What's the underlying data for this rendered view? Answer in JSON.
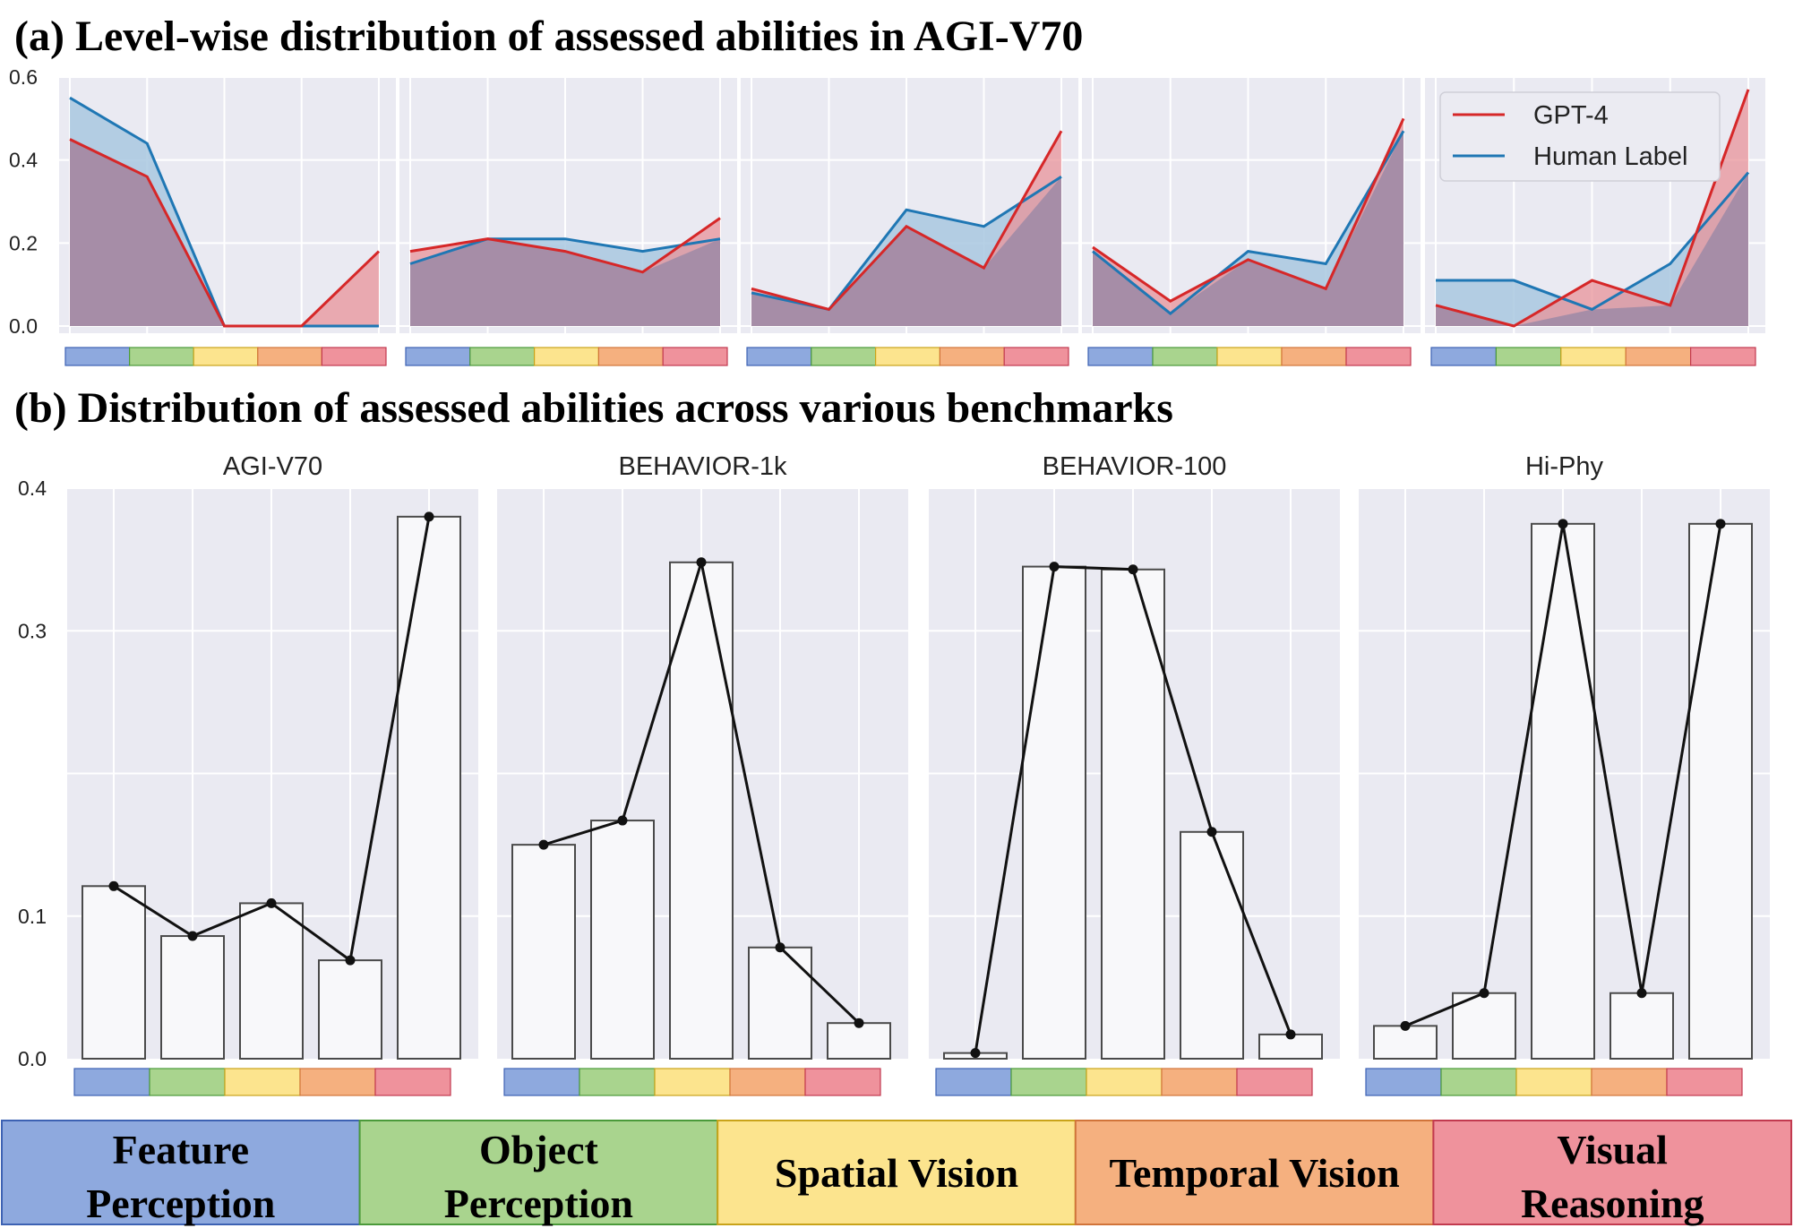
{
  "colors": {
    "panel_bg": "#eaeaf2",
    "grid": "#ffffff",
    "gpt4": "#d62728",
    "human": "#1f77b4",
    "gpt4_fill": "#e8939a",
    "human_fill": "#a9c8e0",
    "overlap_fill": "#a08ba6",
    "cats": [
      "#8ea9de",
      "#a9d48e",
      "#fce48e",
      "#f5b07f",
      "#ef929c"
    ],
    "cat_borders": [
      "#3d62b3",
      "#4b9a3a",
      "#c9a31a",
      "#d1743a",
      "#c23a4f"
    ]
  },
  "categories": [
    "Feature Perception",
    "Object Perception",
    "Spatial Vision",
    "Temporal Vision",
    "Visual Reasoning"
  ],
  "legend_labels": [
    "Feature\nPerception",
    "Object\nPerception",
    "Spatial Vision",
    "Temporal Vision",
    "Visual\nReasoning"
  ],
  "chart_data": [
    {
      "title": "(a) Level-wise distribution of assessed abilities in AGI-V70",
      "type": "area",
      "ylim": [
        0,
        0.6
      ],
      "yticks": [
        "0.0",
        "0.2",
        "0.4",
        "0.6"
      ],
      "legend": [
        "GPT-4",
        "Human Label"
      ],
      "legend_position": "top-right",
      "grid": true,
      "panels": [
        {
          "series": [
            {
              "name": "GPT-4",
              "values": [
                0.45,
                0.36,
                0.0,
                0.0,
                0.18
              ]
            },
            {
              "name": "Human Label",
              "values": [
                0.55,
                0.44,
                0.0,
                0.0,
                0.0
              ]
            }
          ]
        },
        {
          "series": [
            {
              "name": "GPT-4",
              "values": [
                0.18,
                0.21,
                0.18,
                0.13,
                0.26
              ]
            },
            {
              "name": "Human Label",
              "values": [
                0.15,
                0.21,
                0.21,
                0.18,
                0.21
              ]
            }
          ]
        },
        {
          "series": [
            {
              "name": "GPT-4",
              "values": [
                0.09,
                0.04,
                0.24,
                0.14,
                0.47
              ]
            },
            {
              "name": "Human Label",
              "values": [
                0.08,
                0.04,
                0.28,
                0.24,
                0.36
              ]
            }
          ]
        },
        {
          "series": [
            {
              "name": "GPT-4",
              "values": [
                0.19,
                0.06,
                0.16,
                0.09,
                0.5
              ]
            },
            {
              "name": "Human Label",
              "values": [
                0.18,
                0.03,
                0.18,
                0.15,
                0.47
              ]
            }
          ]
        },
        {
          "series": [
            {
              "name": "GPT-4",
              "values": [
                0.05,
                0.0,
                0.11,
                0.05,
                0.57
              ]
            },
            {
              "name": "Human Label",
              "values": [
                0.11,
                0.11,
                0.04,
                0.15,
                0.37
              ]
            }
          ]
        }
      ]
    },
    {
      "title": "(b) Distribution of assessed abilities across various benchmarks",
      "type": "bar",
      "ylim": [
        0,
        0.4
      ],
      "yticks": [
        "0.0",
        "0.1",
        "0.3",
        "0.4"
      ],
      "grid": true,
      "panels": [
        {
          "title": "AGI-V70",
          "values": [
            0.121,
            0.086,
            0.109,
            0.069,
            0.38
          ]
        },
        {
          "title": "BEHAVIOR-1k",
          "values": [
            0.15,
            0.167,
            0.348,
            0.078,
            0.025
          ]
        },
        {
          "title": "BEHAVIOR-100",
          "values": [
            0.004,
            0.345,
            0.343,
            0.159,
            0.017
          ]
        },
        {
          "title": "Hi-Phy",
          "values": [
            0.023,
            0.046,
            0.375,
            0.046,
            0.375
          ]
        }
      ]
    }
  ]
}
